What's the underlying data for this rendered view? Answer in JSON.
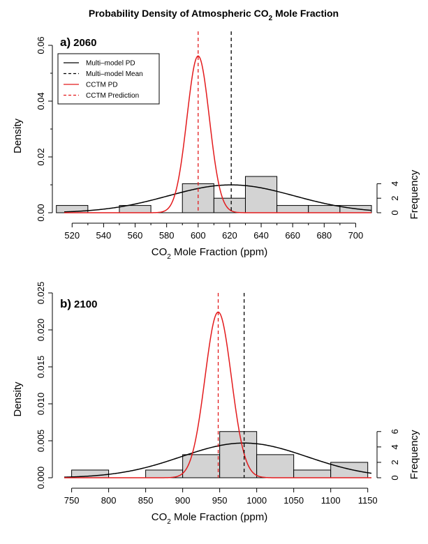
{
  "figure": {
    "title_main": "Probability Density of Atmospheric CO",
    "title_sub": "2",
    "title_end": " Mole Fraction"
  },
  "colors": {
    "multi_model": "#000000",
    "cctm": "#e31a1c",
    "bars_fill": "#d3d3d3",
    "bars_stroke": "#000000"
  },
  "legend": {
    "placement": "top-left",
    "items": [
      {
        "label": "Multi–model PD",
        "color": "#000000",
        "dash": false
      },
      {
        "label": "Multi–model Mean",
        "color": "#000000",
        "dash": true
      },
      {
        "label": "CCTM PD",
        "color": "#e31a1c",
        "dash": false
      },
      {
        "label": "CCTM Prediction",
        "color": "#e31a1c",
        "dash": true
      }
    ]
  },
  "chart_data": [
    {
      "type": "bar",
      "panel_letter": "a)",
      "panel_year": "2060",
      "xlabel_main": "CO",
      "xlabel_sub": "2",
      "xlabel_end": " Mole Fraction (ppm)",
      "ylabel": "Density",
      "ylabel_right": "Frequency",
      "xlim": [
        515,
        710
      ],
      "ylim": [
        0,
        0.065
      ],
      "x_ticks": [
        "520",
        "540",
        "560",
        "580",
        "600",
        "620",
        "640",
        "660",
        "680",
        "700"
      ],
      "y_ticks": [
        "0.00",
        "0.02",
        "0.04",
        "0.06"
      ],
      "y_tick_values": [
        0,
        0.02,
        0.04,
        0.06
      ],
      "y_minor_ticks": [
        0.01,
        0.03,
        0.05
      ],
      "freq_ticks": [
        "0",
        "2",
        "4"
      ],
      "freq_tick_values": [
        0,
        2,
        4
      ],
      "freq_max": 5,
      "hist_bin_width": 20,
      "hist_bins": [
        {
          "start": 510,
          "end": 530,
          "count": 1
        },
        {
          "start": 530,
          "end": 550,
          "count": 0
        },
        {
          "start": 550,
          "end": 570,
          "count": 1
        },
        {
          "start": 570,
          "end": 590,
          "count": 0
        },
        {
          "start": 590,
          "end": 610,
          "count": 4
        },
        {
          "start": 610,
          "end": 630,
          "count": 2
        },
        {
          "start": 630,
          "end": 650,
          "count": 5
        },
        {
          "start": 650,
          "end": 670,
          "count": 1
        },
        {
          "start": 670,
          "end": 690,
          "count": 1
        },
        {
          "start": 690,
          "end": 710,
          "count": 1
        }
      ],
      "multi_model_pd": {
        "mean": 621,
        "sd": 40
      },
      "multi_model_mean": 621,
      "cctm_pd": {
        "mean": 600,
        "sd": 7.1
      },
      "cctm_prediction": 600
    },
    {
      "type": "bar",
      "panel_letter": "b)",
      "panel_year": "2100",
      "xlabel_main": "CO",
      "xlabel_sub": "2",
      "xlabel_end": " Mole Fraction (ppm)",
      "ylabel": "Density",
      "ylabel_right": "Frequency",
      "xlim": [
        740,
        1155
      ],
      "ylim": [
        0,
        0.025
      ],
      "x_ticks": [
        "750",
        "800",
        "850",
        "900",
        "950",
        "1000",
        "1050",
        "1100",
        "1150"
      ],
      "y_ticks": [
        "0.000",
        "0.005",
        "0.010",
        "0.015",
        "0.020",
        "0.025"
      ],
      "y_tick_values": [
        0,
        0.005,
        0.01,
        0.015,
        0.02,
        0.025
      ],
      "y_minor_ticks": [],
      "freq_ticks": [
        "0",
        "2",
        "4",
        "6"
      ],
      "freq_tick_values": [
        0,
        2,
        4,
        6
      ],
      "freq_max": 6,
      "hist_bin_width": 50,
      "hist_bins": [
        {
          "start": 750,
          "end": 800,
          "count": 1
        },
        {
          "start": 800,
          "end": 850,
          "count": 0
        },
        {
          "start": 850,
          "end": 900,
          "count": 1
        },
        {
          "start": 900,
          "end": 950,
          "count": 3
        },
        {
          "start": 950,
          "end": 1000,
          "count": 6
        },
        {
          "start": 1000,
          "end": 1050,
          "count": 3
        },
        {
          "start": 1050,
          "end": 1100,
          "count": 1
        },
        {
          "start": 1100,
          "end": 1150,
          "count": 2
        }
      ],
      "multi_model_pd": {
        "mean": 983,
        "sd": 85
      },
      "multi_model_mean": 983,
      "cctm_pd": {
        "mean": 948,
        "sd": 17.8
      },
      "cctm_prediction": 948
    }
  ]
}
